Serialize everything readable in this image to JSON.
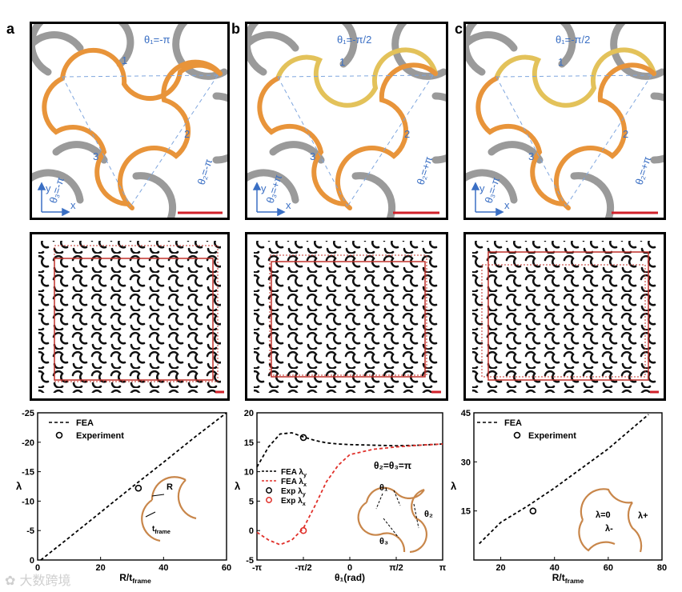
{
  "panels": [
    {
      "letter": "a",
      "theta1": "θ₁=-π",
      "theta2": "θ₂=-π",
      "theta3": "θ₃=-π",
      "n1": "1",
      "n2": "2",
      "n3": "3",
      "ax_y": "y",
      "ax_x": "x"
    },
    {
      "letter": "b",
      "theta1": "θ₁=-π/2",
      "theta2": "θ₂=+π",
      "theta3": "θ₃=+π",
      "n1": "1",
      "n2": "2",
      "n3": "3",
      "ax_y": "y",
      "ax_x": "x"
    },
    {
      "letter": "c",
      "theta1": "θ₁=-π/2",
      "theta2": "θ₂=+π",
      "theta3": "θ₃=-π",
      "n1": "1",
      "n2": "2",
      "n3": "3",
      "ax_y": "y",
      "ax_x": "x"
    }
  ],
  "colors": {
    "orange": "#e8943a",
    "gray": "#8e8e8e",
    "blue": "#3a6fc4",
    "red": "#d0202a",
    "black": "#000000"
  },
  "chart_data": [
    {
      "type": "line",
      "xlabel": "R/t",
      "xlabel_sub": "frame",
      "ylabel": "λ",
      "xlim": [
        0,
        60
      ],
      "ylim": [
        0,
        -25
      ],
      "xticks": [
        0,
        20,
        40,
        60
      ],
      "yticks": [
        0,
        -5,
        -10,
        -15,
        -20,
        -25
      ],
      "legend": [
        {
          "name": "FEA",
          "style": "dashed"
        },
        {
          "name": "Experiment",
          "style": "circle"
        }
      ],
      "series": [
        {
          "name": "FEA",
          "x": [
            1,
            10,
            20,
            30,
            40,
            50,
            60
          ],
          "y": [
            0,
            -3.8,
            -8.1,
            -12.4,
            -16.6,
            -20.9,
            -25
          ]
        },
        {
          "name": "Experiment",
          "x": [
            32
          ],
          "y": [
            -12.2
          ]
        }
      ],
      "annotations": {
        "r": "R",
        "tframe": "t",
        "tframe_sub": "frame"
      }
    },
    {
      "type": "line",
      "xlabel": "θ₁(rad)",
      "ylabel": "λ",
      "xlim": [
        -3.1416,
        3.1416
      ],
      "ylim": [
        -5,
        20
      ],
      "xticks": [
        "-π",
        "-π/2",
        "0",
        "π/2",
        "π"
      ],
      "yticks": [
        -5,
        0,
        5,
        10,
        15,
        20
      ],
      "legend": [
        {
          "name": "FEA λ",
          "sub": "y",
          "style": "dashed-black"
        },
        {
          "name": "FEA λ",
          "sub": "x",
          "style": "dashed-red"
        },
        {
          "name": "Exp λ",
          "sub": "y",
          "style": "circle-black"
        },
        {
          "name": "Exp λ",
          "sub": "x",
          "style": "circle-red"
        }
      ],
      "series": [
        {
          "name": "FEA λy",
          "x": [
            -3.1416,
            -2.75,
            -2.36,
            -1.96,
            -1.57,
            -1.18,
            -0.79,
            -0.39,
            0,
            0.79,
            1.57,
            2.36,
            3.1416
          ],
          "y": [
            10.8,
            14.2,
            16.4,
            16.6,
            15.9,
            15.3,
            14.9,
            14.7,
            14.6,
            14.5,
            14.4,
            14.5,
            14.7
          ]
        },
        {
          "name": "FEA λx",
          "x": [
            -3.1416,
            -2.75,
            -2.36,
            -1.96,
            -1.57,
            -1.18,
            -0.79,
            -0.39,
            0,
            0.79,
            1.57,
            2.36,
            3.1416
          ],
          "y": [
            -0.3,
            -1.6,
            -2.4,
            -1.6,
            0.4,
            4.2,
            8.3,
            11.1,
            12.9,
            13.8,
            14.2,
            14.5,
            14.7
          ]
        },
        {
          "name": "Exp λy",
          "x": [
            -1.57
          ],
          "y": [
            15.8
          ]
        },
        {
          "name": "Exp λx",
          "x": [
            -1.57
          ],
          "y": [
            0
          ]
        }
      ],
      "annotations": {
        "condition": "θ₂=θ₃=π",
        "t1": "θ₁",
        "t2": "θ₂",
        "t3": "θ₃"
      }
    },
    {
      "type": "line",
      "xlabel": "R/t",
      "xlabel_sub": "frame",
      "ylabel": "λ",
      "xlim": [
        10,
        80
      ],
      "ylim": [
        0,
        45
      ],
      "xticks": [
        20,
        40,
        60,
        80
      ],
      "yticks": [
        15,
        30,
        45
      ],
      "legend": [
        {
          "name": "FEA",
          "style": "dashed"
        },
        {
          "name": "Experiment",
          "style": "circle"
        }
      ],
      "series": [
        {
          "name": "FEA",
          "x": [
            12,
            20,
            30,
            40,
            50,
            60,
            70,
            75
          ],
          "y": [
            5,
            11.5,
            16.5,
            22,
            28,
            34,
            41,
            44.5
          ]
        },
        {
          "name": "Experiment",
          "x": [
            32
          ],
          "y": [
            15
          ]
        }
      ],
      "annotations": {
        "l0": "λ=0",
        "lplus": "λ+",
        "lminus": "λ-"
      }
    }
  ]
}
